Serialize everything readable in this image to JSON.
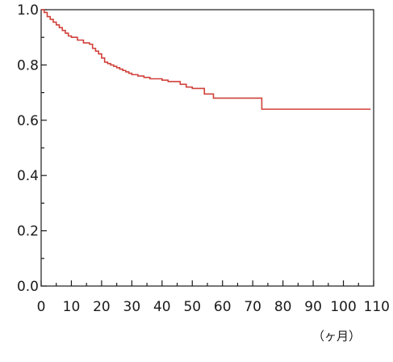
{
  "chart_data": {
    "type": "line",
    "title": "",
    "xlabel": "（ヶ月）",
    "ylabel": "",
    "xlim": [
      0,
      110
    ],
    "ylim": [
      0,
      1.0
    ],
    "x_ticks": [
      0,
      10,
      20,
      30,
      40,
      50,
      60,
      70,
      80,
      90,
      100,
      110
    ],
    "x_tick_labels": [
      "0",
      "10",
      "20",
      "30",
      "40",
      "50",
      "60",
      "70",
      "80",
      "90",
      "100",
      "110"
    ],
    "y_ticks": [
      0.0,
      0.2,
      0.4,
      0.6,
      0.8,
      1.0
    ],
    "y_tick_labels": [
      "0.0",
      "0.2",
      "0.4",
      "0.6",
      "0.8",
      "1.0"
    ],
    "grid": false,
    "step": true,
    "line_color": "#d0413a",
    "series": [
      {
        "x": [
          0,
          1,
          2,
          3,
          4,
          5,
          6,
          7,
          8,
          9,
          10,
          12,
          14,
          16,
          17,
          18,
          19,
          20,
          21,
          22,
          23,
          24,
          25,
          26,
          27,
          28,
          29,
          30,
          32,
          34,
          36,
          38,
          40,
          42,
          44,
          46,
          48,
          50,
          54,
          57,
          60,
          66,
          70,
          73,
          80,
          90,
          100,
          109
        ],
        "y": [
          1.0,
          0.99,
          0.975,
          0.965,
          0.955,
          0.945,
          0.935,
          0.925,
          0.915,
          0.905,
          0.9,
          0.89,
          0.88,
          0.875,
          0.86,
          0.85,
          0.84,
          0.825,
          0.81,
          0.805,
          0.8,
          0.795,
          0.79,
          0.785,
          0.78,
          0.775,
          0.77,
          0.765,
          0.76,
          0.755,
          0.75,
          0.75,
          0.745,
          0.74,
          0.74,
          0.73,
          0.72,
          0.715,
          0.695,
          0.68,
          0.68,
          0.68,
          0.68,
          0.64,
          0.64,
          0.64,
          0.64,
          0.64
        ]
      }
    ]
  }
}
